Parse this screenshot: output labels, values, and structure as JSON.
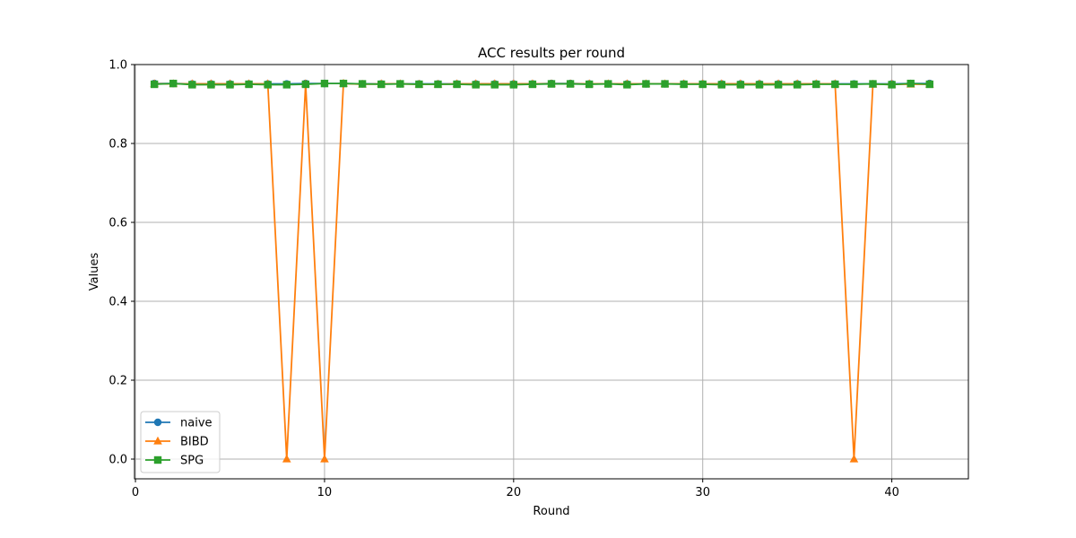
{
  "chart_data": {
    "type": "line",
    "title": "ACC results per round",
    "xlabel": "Round",
    "ylabel": "Values",
    "xlim": [
      -0.05,
      44.05
    ],
    "ylim": [
      -0.05,
      1.0
    ],
    "xticks": [
      0,
      10,
      20,
      30,
      40
    ],
    "yticks": [
      0.0,
      0.2,
      0.4,
      0.6,
      0.8,
      1.0
    ],
    "xtick_labels": [
      "0",
      "10",
      "20",
      "30",
      "40"
    ],
    "ytick_labels": [
      "0.0",
      "0.2",
      "0.4",
      "0.6",
      "0.8",
      "1.0"
    ],
    "grid": true,
    "legend_position": "lower-left",
    "x": [
      1,
      2,
      3,
      4,
      5,
      6,
      7,
      8,
      9,
      10,
      11,
      12,
      13,
      14,
      15,
      16,
      17,
      18,
      19,
      20,
      21,
      22,
      23,
      24,
      25,
      26,
      27,
      28,
      29,
      30,
      31,
      32,
      33,
      34,
      35,
      36,
      37,
      38,
      39,
      40,
      41,
      42
    ],
    "series": [
      {
        "name": "naive",
        "color": "#1f77b4",
        "marker": "circle",
        "values": [
          0.952,
          0.952,
          0.951,
          0.951,
          0.951,
          0.951,
          0.951,
          0.951,
          0.952,
          0.952,
          0.952,
          0.951,
          0.951,
          0.951,
          0.951,
          0.951,
          0.951,
          0.951,
          0.951,
          0.951,
          0.951,
          0.952,
          0.952,
          0.951,
          0.951,
          0.951,
          0.951,
          0.951,
          0.951,
          0.951,
          0.951,
          0.951,
          0.951,
          0.951,
          0.951,
          0.951,
          0.951,
          0.951,
          0.951,
          0.951,
          0.952,
          0.952
        ]
      },
      {
        "name": "BIBD",
        "color": "#ff7f0e",
        "marker": "triangle",
        "values": [
          0.951,
          0.951,
          0.951,
          0.951,
          0.951,
          0.951,
          0.951,
          0.0,
          0.951,
          0.0,
          0.952,
          0.95,
          0.951,
          0.951,
          0.95,
          0.95,
          0.951,
          0.951,
          0.951,
          0.951,
          0.951,
          0.951,
          0.951,
          0.951,
          0.951,
          0.951,
          0.951,
          0.951,
          0.951,
          0.951,
          0.951,
          0.951,
          0.951,
          0.951,
          0.951,
          0.951,
          0.951,
          0.0,
          0.95,
          0.95,
          0.95,
          0.95
        ]
      },
      {
        "name": "SPG",
        "color": "#2ca02c",
        "marker": "square",
        "values": [
          0.95,
          0.952,
          0.949,
          0.949,
          0.949,
          0.95,
          0.949,
          0.949,
          0.95,
          0.952,
          0.952,
          0.951,
          0.95,
          0.951,
          0.95,
          0.95,
          0.95,
          0.949,
          0.949,
          0.949,
          0.95,
          0.951,
          0.951,
          0.95,
          0.951,
          0.949,
          0.951,
          0.951,
          0.95,
          0.95,
          0.949,
          0.949,
          0.949,
          0.949,
          0.949,
          0.95,
          0.95,
          0.95,
          0.951,
          0.949,
          0.952,
          0.95
        ]
      }
    ]
  }
}
